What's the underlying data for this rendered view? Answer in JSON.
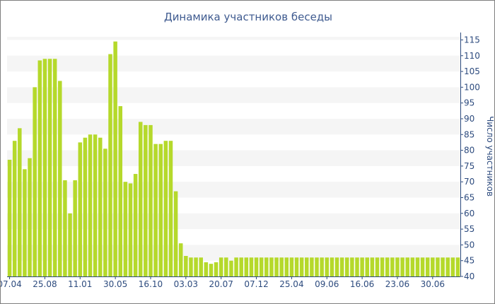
{
  "colors": {
    "bar": "#b5d92b",
    "band": "#f5f5f5",
    "axis": "#2d4b7e",
    "title": "#3e5a8f"
  },
  "chart_data": {
    "type": "bar",
    "title": "Динамика участников беседы",
    "xlabel": "",
    "ylabel": "Число участников",
    "ylim": [
      40,
      116
    ],
    "y_ticks": [
      40,
      45,
      50,
      55,
      60,
      65,
      70,
      75,
      80,
      85,
      90,
      95,
      100,
      105,
      110,
      115
    ],
    "y_axis_position": "right",
    "grid": "alternating horizontal bands",
    "x_tick_labels": [
      {
        "label": "07.04",
        "index": 0
      },
      {
        "label": "25.08",
        "index": 7
      },
      {
        "label": "11.01",
        "index": 14
      },
      {
        "label": "30.05",
        "index": 21
      },
      {
        "label": "16.10",
        "index": 28
      },
      {
        "label": "03.03",
        "index": 35
      },
      {
        "label": "20.07",
        "index": 42
      },
      {
        "label": "07.12",
        "index": 49
      },
      {
        "label": "25.04",
        "index": 56
      },
      {
        "label": "09.06",
        "index": 63
      },
      {
        "label": "16.06",
        "index": 70
      },
      {
        "label": "23.06",
        "index": 77
      },
      {
        "label": "30.06",
        "index": 84
      }
    ],
    "values": [
      77,
      83,
      87,
      74,
      77.5,
      100,
      108.5,
      109,
      109,
      109,
      102,
      70.5,
      60,
      70.5,
      82.5,
      84,
      85,
      85,
      84,
      80.5,
      110.5,
      114.5,
      94,
      70,
      69.5,
      72.5,
      89,
      88,
      88,
      82,
      82,
      83,
      83,
      67,
      50.5,
      46.5,
      46,
      46,
      46,
      44.5,
      44,
      44.5,
      46,
      46,
      45,
      46,
      46,
      46,
      46,
      46,
      46,
      46,
      46,
      46,
      46,
      46,
      46,
      46,
      46,
      46,
      46,
      46,
      46,
      46,
      46,
      46,
      46,
      46,
      46,
      46,
      46,
      46,
      46,
      46,
      46,
      46,
      46,
      46,
      46,
      46,
      46,
      46,
      46,
      46,
      46,
      46,
      46,
      46,
      46,
      46
    ]
  }
}
